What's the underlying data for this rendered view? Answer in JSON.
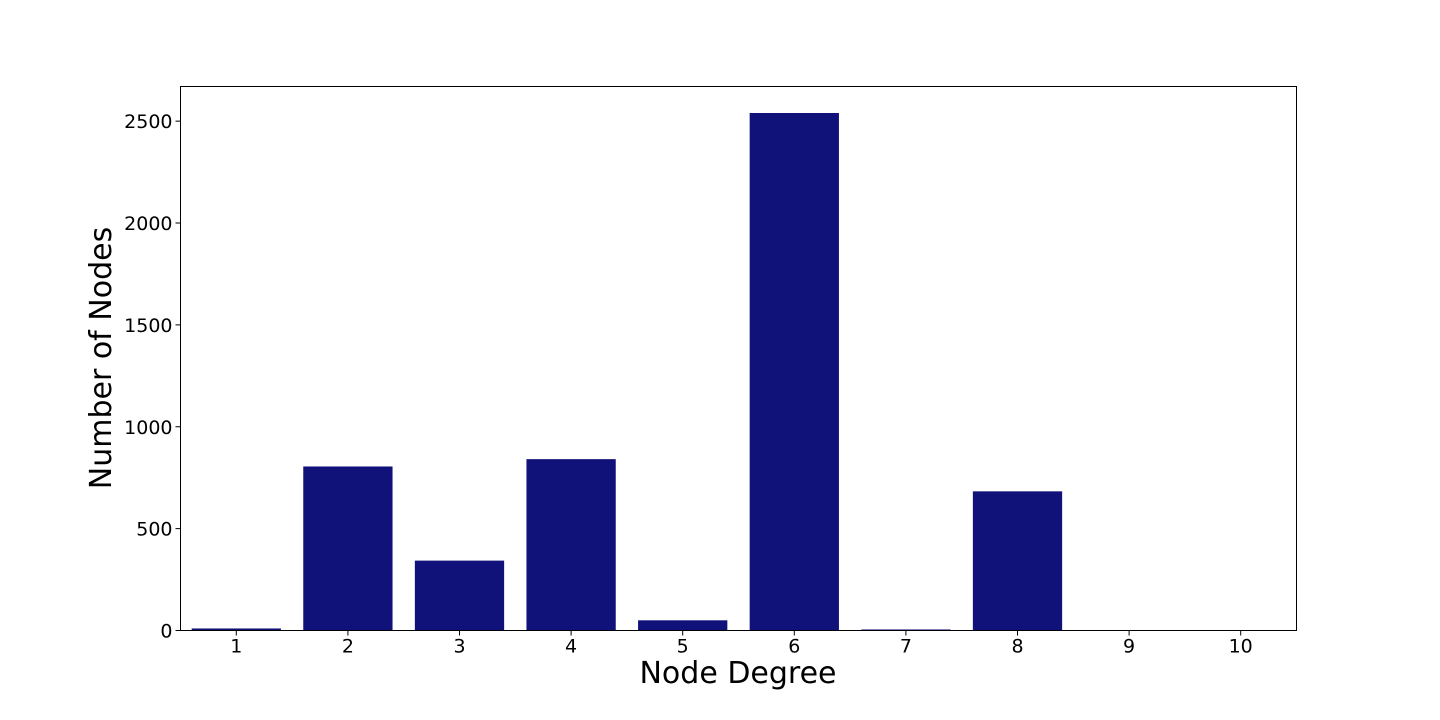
{
  "chart_data": {
    "type": "bar",
    "categories": [
      "1",
      "2",
      "3",
      "4",
      "5",
      "6",
      "7",
      "8",
      "9",
      "10"
    ],
    "values": [
      10,
      805,
      343,
      841,
      50,
      2540,
      5,
      683,
      0,
      0
    ],
    "xlabel": "Node Degree",
    "ylabel": "Number of Nodes",
    "ylim": [
      0,
      2670
    ],
    "yticks": [
      0,
      500,
      1000,
      1500,
      2000,
      2500
    ],
    "bar_color": "#11117a",
    "grid": false,
    "legend": "none"
  }
}
